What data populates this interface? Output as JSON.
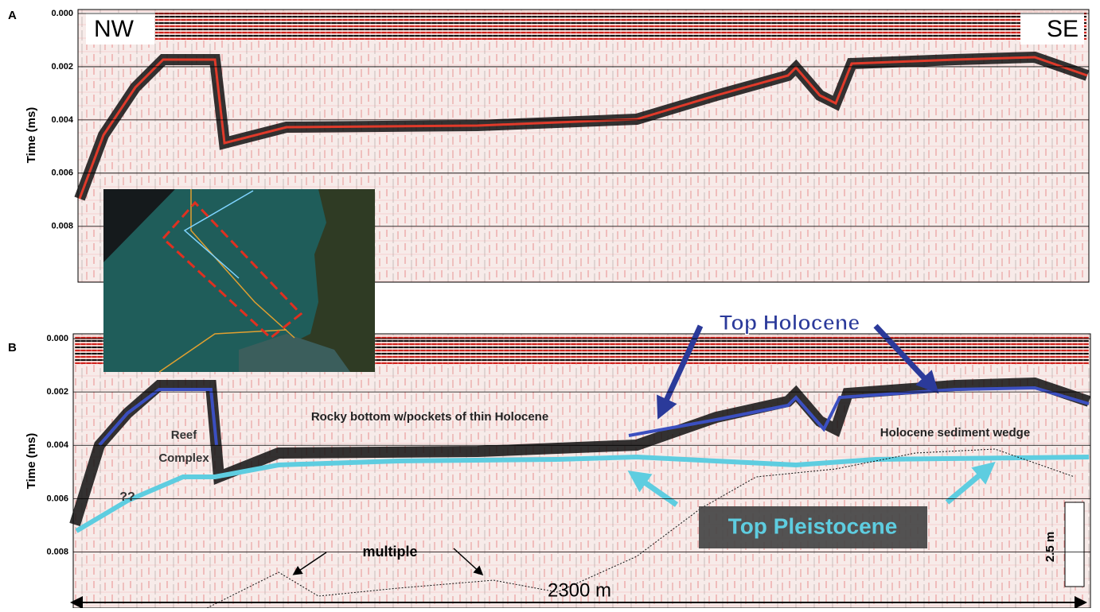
{
  "panels": [
    {
      "label": "A",
      "y_label": "Time (ms)",
      "ylim": [
        -0.00015,
        0.0101
      ],
      "yticks": [
        {
          "value": 0,
          "label": "0.000"
        },
        {
          "value": 0.002,
          "label": "0.002"
        },
        {
          "value": 0.004,
          "label": "0.004"
        },
        {
          "value": 0.006,
          "label": "0.006"
        },
        {
          "value": 0.008,
          "label": "0.008"
        }
      ],
      "left_tag": "NW",
      "right_tag": "SE"
    },
    {
      "label": "B",
      "y_label": "Time (ms)",
      "ylim": [
        -0.00018,
        0.0101
      ],
      "yticks": [
        {
          "value": 0,
          "label": "0.000"
        },
        {
          "value": 0.002,
          "label": "0.002"
        },
        {
          "value": 0.004,
          "label": "0.004"
        },
        {
          "value": 0.006,
          "label": "0.006"
        },
        {
          "value": 0.008,
          "label": "0.008"
        }
      ],
      "annotations": {
        "top_holocene": "Top Holocene",
        "rocky_bottom": "Rocky bottom w/pockets of thin Holocene",
        "reef_1": "Reef",
        "reef_2": "Complex",
        "wedge": "Holocene sediment wedge",
        "unknown": "??",
        "top_pleistocene": "Top Pleistocene",
        "multiple": "multiple",
        "distance": "2300 m",
        "scale": "2.5 m"
      }
    }
  ]
}
